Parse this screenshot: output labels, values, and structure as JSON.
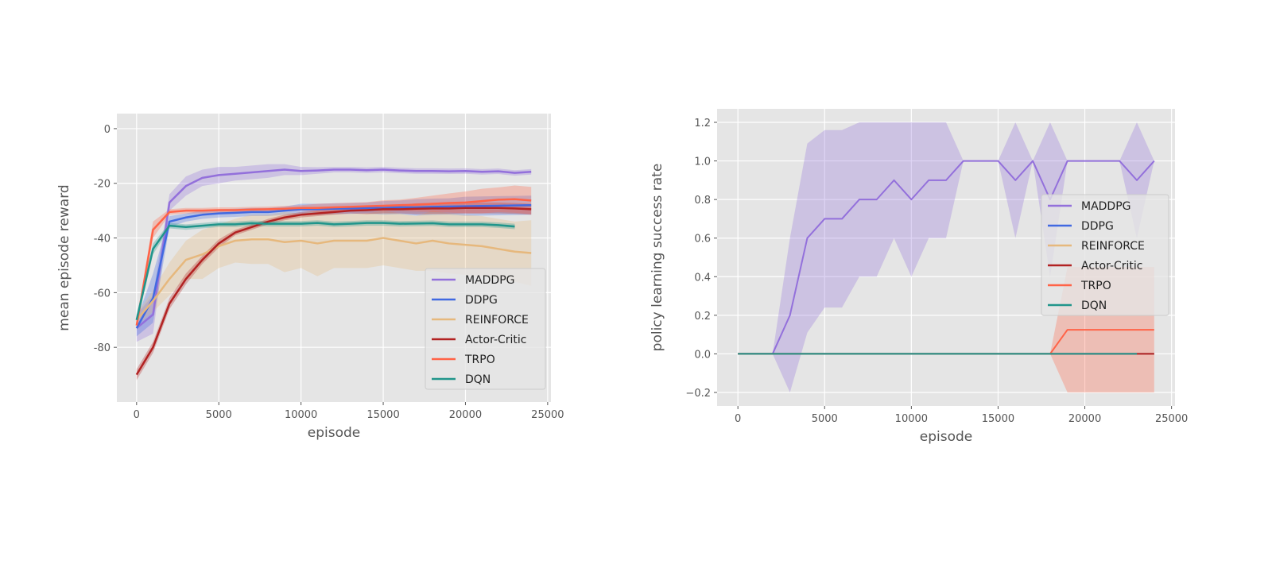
{
  "chart_data": [
    {
      "type": "line",
      "title": "",
      "xlabel": "episode",
      "ylabel": "mean episode reward",
      "xlim": [
        -1200,
        25200
      ],
      "ylim": [
        -100,
        5.5
      ],
      "xticks": [
        0,
        5000,
        10000,
        15000,
        20000,
        25000
      ],
      "yticks": [
        0,
        -20,
        -40,
        -60,
        -80
      ],
      "grid": true,
      "legend_position": "lower-right",
      "series": [
        {
          "name": "MADDPG",
          "color": "#9370DB",
          "x": [
            0,
            1000,
            2000,
            3000,
            4000,
            5000,
            6000,
            7000,
            8000,
            9000,
            10000,
            11000,
            12000,
            13000,
            14000,
            15000,
            16000,
            17000,
            18000,
            19000,
            20000,
            21000,
            22000,
            23000,
            24000
          ],
          "y": [
            -73,
            -68,
            -27,
            -21,
            -18,
            -17,
            -16.5,
            -16,
            -15.5,
            -15,
            -15.5,
            -15.3,
            -15,
            -15,
            -15.2,
            -15,
            -15.3,
            -15.5,
            -15.5,
            -15.6,
            -15.5,
            -15.8,
            -15.6,
            -16.2,
            -15.8
          ],
          "band": [
            5,
            7,
            3,
            3.5,
            3,
            3,
            2.5,
            2.5,
            2.5,
            2,
            1.5,
            1.2,
            1,
            1,
            1,
            1,
            1,
            1,
            1,
            1,
            1,
            1,
            1,
            1,
            1
          ]
        },
        {
          "name": "DDPG",
          "color": "#4169E1",
          "x": [
            0,
            1000,
            2000,
            3000,
            4000,
            5000,
            6000,
            7000,
            8000,
            9000,
            10000,
            11000,
            12000,
            13000,
            14000,
            15000,
            16000,
            17000,
            18000,
            19000,
            20000,
            21000,
            22000,
            23000,
            24000
          ],
          "y": [
            -73,
            -62,
            -34,
            -32.5,
            -31.5,
            -31,
            -30.8,
            -30.5,
            -30.5,
            -30,
            -29.5,
            -29.5,
            -29.3,
            -29.2,
            -29,
            -29,
            -28.8,
            -28.8,
            -28.6,
            -28.5,
            -28.4,
            -28.3,
            -28.2,
            -28.1,
            -28
          ],
          "band": [
            3,
            9,
            2,
            1.5,
            1.5,
            1.5,
            1.5,
            1.5,
            1.5,
            1.5,
            2,
            2,
            2,
            2,
            2,
            2.5,
            2.5,
            3,
            3,
            3,
            3.5,
            3.5,
            3.5,
            3.5,
            3.5
          ]
        },
        {
          "name": "REINFORCE",
          "color": "#E6B87D",
          "x": [
            0,
            1000,
            2000,
            3000,
            4000,
            5000,
            6000,
            7000,
            8000,
            9000,
            10000,
            11000,
            12000,
            13000,
            14000,
            15000,
            16000,
            17000,
            18000,
            19000,
            20000,
            21000,
            22000,
            23000,
            24000
          ],
          "y": [
            -70,
            -63,
            -55,
            -48,
            -46,
            -43,
            -41,
            -40.5,
            -40.5,
            -41.5,
            -41,
            -42,
            -41,
            -41,
            -41,
            -40,
            -41,
            -42,
            -41,
            -42,
            -42.5,
            -43,
            -44,
            -45,
            -45.5
          ],
          "band": [
            2,
            4,
            6,
            7,
            9,
            8,
            8,
            9,
            9,
            11,
            10,
            12,
            10,
            10,
            10,
            10,
            10,
            10,
            11,
            11,
            11,
            11,
            11,
            11,
            12
          ]
        },
        {
          "name": "Actor-Critic",
          "color": "#B22222",
          "x": [
            0,
            1000,
            2000,
            3000,
            4000,
            5000,
            6000,
            7000,
            8000,
            9000,
            10000,
            11000,
            12000,
            13000,
            14000,
            15000,
            16000,
            17000,
            18000,
            19000,
            20000,
            21000,
            22000,
            23000,
            24000
          ],
          "y": [
            -90,
            -80,
            -64,
            -55,
            -48,
            -42,
            -38,
            -36,
            -34,
            -32.5,
            -31.5,
            -31,
            -30.5,
            -30,
            -29.8,
            -29.5,
            -29.5,
            -29.3,
            -29.2,
            -29.2,
            -29,
            -29,
            -29,
            -29.2,
            -29.5
          ],
          "band": [
            2,
            2,
            2,
            2,
            1.5,
            1.5,
            1,
            1,
            1,
            1,
            1,
            1,
            1,
            1,
            1.5,
            1.5,
            1.5,
            2,
            2,
            2,
            2,
            2,
            2,
            2,
            2
          ]
        },
        {
          "name": "TRPO",
          "color": "#FF6347",
          "x": [
            0,
            1000,
            2000,
            3000,
            4000,
            5000,
            6000,
            7000,
            8000,
            9000,
            10000,
            11000,
            12000,
            13000,
            14000,
            15000,
            16000,
            17000,
            18000,
            19000,
            20000,
            21000,
            22000,
            23000,
            24000
          ],
          "y": [
            -72,
            -37,
            -30.5,
            -30,
            -30,
            -29.8,
            -29.8,
            -29.6,
            -29.5,
            -29.3,
            -29,
            -29,
            -28.8,
            -28.6,
            -28.4,
            -28.2,
            -28,
            -27.8,
            -27.5,
            -27.2,
            -27,
            -26.5,
            -26,
            -25.8,
            -26.3
          ],
          "band": [
            2,
            3,
            1,
            1,
            1,
            1,
            1,
            1,
            1,
            1,
            1,
            1.5,
            1.5,
            1.5,
            1.5,
            2,
            2,
            2.5,
            3,
            3.5,
            4,
            4.5,
            4.5,
            5,
            5
          ]
        },
        {
          "name": "DQN",
          "color": "#20958B",
          "x": [
            0,
            1000,
            2000,
            3000,
            4000,
            5000,
            6000,
            7000,
            8000,
            9000,
            10000,
            11000,
            12000,
            13000,
            14000,
            15000,
            16000,
            17000,
            18000,
            19000,
            20000,
            21000,
            22000,
            23000
          ],
          "y": [
            -70,
            -44,
            -35.5,
            -36,
            -35.5,
            -35,
            -35,
            -34.6,
            -34.8,
            -34.8,
            -34.8,
            -34.5,
            -35,
            -34.8,
            -34.5,
            -34.5,
            -34.8,
            -34.7,
            -34.6,
            -35,
            -35,
            -35,
            -35.3,
            -35.8
          ],
          "band": [
            2,
            2,
            1,
            1,
            1,
            1,
            1,
            1,
            1,
            1,
            1,
            1,
            1,
            1,
            1,
            1,
            1,
            1,
            1,
            1,
            1,
            1,
            1,
            1
          ]
        }
      ]
    },
    {
      "type": "line",
      "title": "",
      "xlabel": "episode",
      "ylabel": "policy learning success rate",
      "xlim": [
        -1200,
        25200
      ],
      "ylim": [
        -0.27,
        1.27
      ],
      "xticks": [
        0,
        5000,
        10000,
        15000,
        20000,
        25000
      ],
      "yticks": [
        1.2,
        1.0,
        0.8,
        0.6,
        0.4,
        0.2,
        0.0,
        -0.2
      ],
      "grid": true,
      "legend_position": "center-right",
      "series": [
        {
          "name": "MADDPG",
          "color": "#9370DB",
          "x": [
            0,
            1000,
            2000,
            3000,
            4000,
            5000,
            6000,
            7000,
            8000,
            9000,
            10000,
            11000,
            12000,
            13000,
            14000,
            15000,
            16000,
            17000,
            18000,
            19000,
            20000,
            21000,
            22000,
            23000,
            24000
          ],
          "y": [
            0,
            0,
            0,
            0.2,
            0.6,
            0.7,
            0.7,
            0.8,
            0.8,
            0.9,
            0.8,
            0.9,
            0.9,
            1.0,
            1.0,
            1.0,
            0.9,
            1.0,
            0.8,
            1.0,
            1.0,
            1.0,
            1.0,
            0.9,
            1.0
          ],
          "lower": [
            0,
            0,
            0,
            -0.2,
            0.11,
            0.24,
            0.24,
            0.4,
            0.4,
            0.6,
            0.4,
            0.6,
            0.6,
            1.0,
            1.0,
            1.0,
            0.6,
            1.0,
            0.4,
            1.0,
            1.0,
            1.0,
            1.0,
            0.6,
            1.0
          ],
          "upper": [
            0,
            0,
            0,
            0.6,
            1.09,
            1.16,
            1.16,
            1.2,
            1.2,
            1.2,
            1.2,
            1.2,
            1.2,
            1.0,
            1.0,
            1.0,
            1.2,
            1.0,
            1.2,
            1.0,
            1.0,
            1.0,
            1.0,
            1.2,
            1.0
          ]
        },
        {
          "name": "DDPG",
          "color": "#4169E1",
          "x": [
            0,
            24000
          ],
          "y": [
            0,
            0
          ]
        },
        {
          "name": "REINFORCE",
          "color": "#E6B87D",
          "x": [
            0,
            24000
          ],
          "y": [
            0,
            0
          ]
        },
        {
          "name": "Actor-Critic",
          "color": "#B22222",
          "x": [
            0,
            24000
          ],
          "y": [
            0,
            0
          ]
        },
        {
          "name": "TRPO",
          "color": "#FF6347",
          "x": [
            0,
            18000,
            19000,
            20000,
            21000,
            22000,
            23000,
            24000
          ],
          "y": [
            0,
            0,
            0.125,
            0.125,
            0.125,
            0.125,
            0.125,
            0.125
          ],
          "lower": [
            0,
            0,
            -0.2,
            -0.2,
            -0.2,
            -0.2,
            -0.2,
            -0.2
          ],
          "upper": [
            0,
            0,
            0.45,
            0.45,
            0.45,
            0.45,
            0.45,
            0.45
          ]
        },
        {
          "name": "DQN",
          "color": "#20958B",
          "x": [
            0,
            23000
          ],
          "y": [
            0,
            0
          ]
        }
      ]
    }
  ]
}
